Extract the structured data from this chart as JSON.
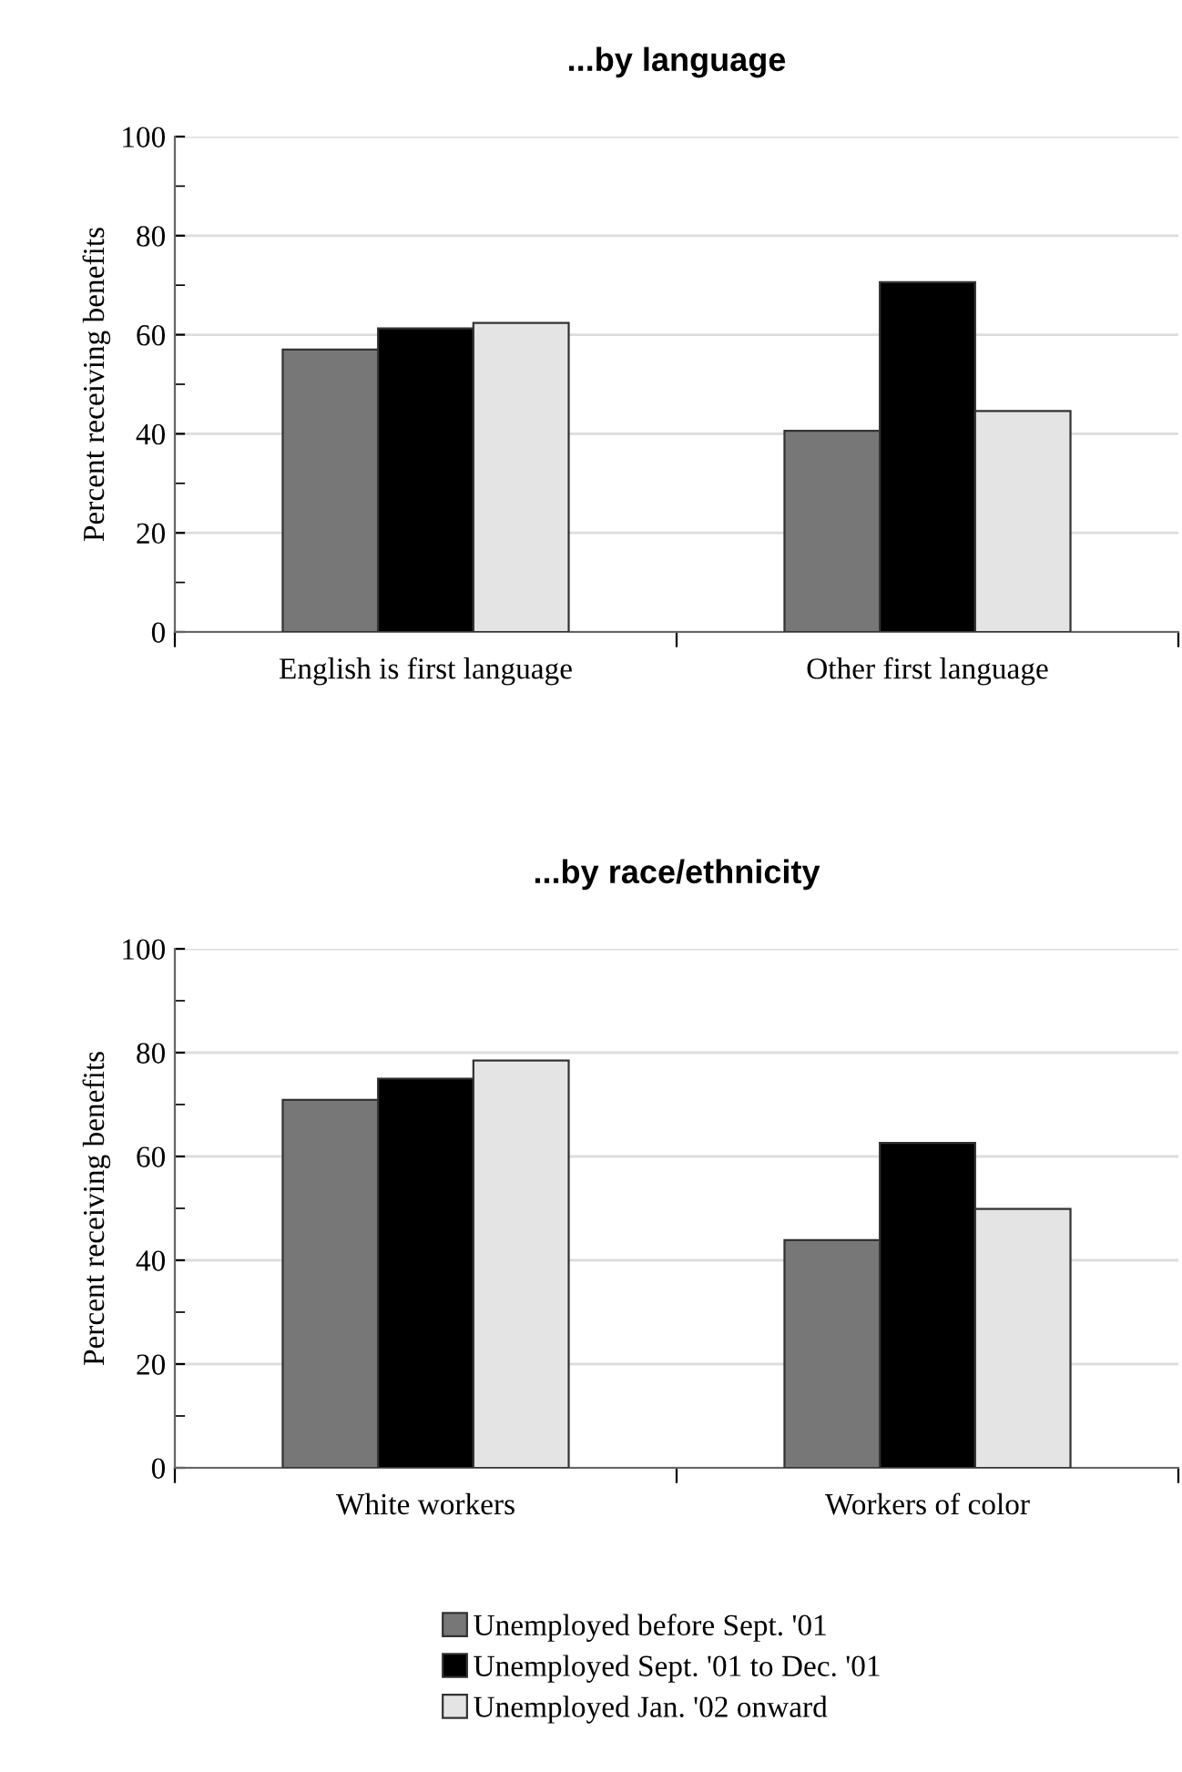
{
  "chart_data": [
    {
      "type": "bar",
      "title": "...by language",
      "ylabel": "Percent receiving benefits",
      "categories": [
        "English is first language",
        "Other first language"
      ],
      "series": [
        {
          "color": "#777777",
          "values": [
            57,
            40.6
          ]
        },
        {
          "color": "#000000",
          "values": [
            61.3,
            70.6
          ]
        },
        {
          "color": "#e4e4e4",
          "values": [
            62.4,
            44.6
          ]
        }
      ],
      "ylim": [
        0,
        100
      ],
      "yticks": [
        0,
        20,
        40,
        60,
        80,
        100
      ],
      "grid": "y",
      "legend": false
    },
    {
      "type": "bar",
      "title": "...by race/ethnicity",
      "ylabel": "Percent receiving benefits",
      "categories": [
        "White workers",
        "Workers of color"
      ],
      "series": [
        {
          "name": "Unemployed before Sept. '01",
          "color": "#777777",
          "values": [
            70.9,
            43.9
          ]
        },
        {
          "name": "Unemployed Sept. '01 to Dec. '01",
          "color": "#000000",
          "values": [
            75.0,
            62.6
          ]
        },
        {
          "name": "Unemployed Jan. '02 onward",
          "color": "#e4e4e4",
          "values": [
            78.5,
            49.9
          ]
        }
      ],
      "ylim": [
        0,
        100
      ],
      "yticks": [
        0,
        20,
        40,
        60,
        80,
        100
      ],
      "grid": "y",
      "legend": "bottom"
    }
  ]
}
